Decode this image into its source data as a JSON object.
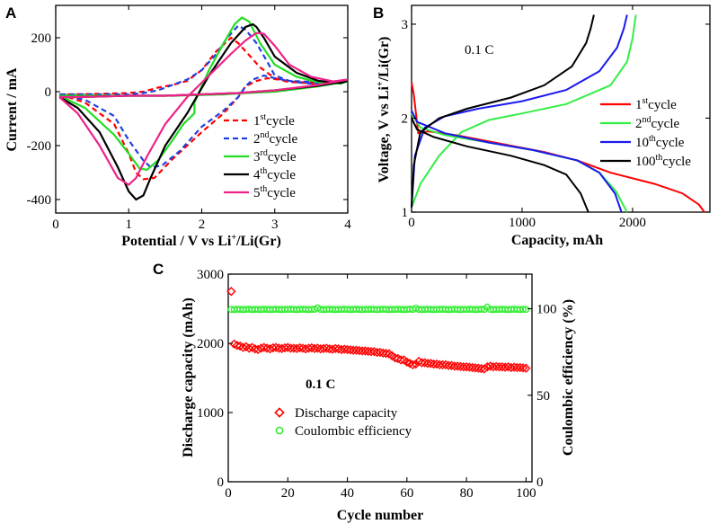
{
  "chart_data": [
    {
      "panel": "A",
      "type": "line",
      "xlabel": "Potential / V vs Li⁺/Li(Gr)",
      "ylabel": "Current / mA",
      "xlim": [
        0,
        4
      ],
      "ylim": [
        -450,
        320
      ],
      "xticks": [
        0,
        1,
        2,
        3,
        4
      ],
      "yticks": [
        -400,
        -200,
        0,
        200
      ],
      "legend_position": "bottom-right",
      "series": [
        {
          "name": "1st cycle",
          "base": "1",
          "sup": "st",
          "rest": "cycle",
          "color": "#ff0000",
          "dash": "dashed",
          "x": [
            0.05,
            0.4,
            0.8,
            1.0,
            1.1,
            1.2,
            1.35,
            1.6,
            2.0,
            2.3,
            2.5,
            2.6,
            2.75,
            2.9,
            3.05,
            3.3,
            3.7,
            4.0,
            3.6,
            3.2,
            3.0,
            2.8,
            2.6,
            2.5,
            2.4,
            2.2,
            2.0,
            1.8,
            1.6,
            1.4,
            1.2,
            1.0,
            0.6,
            0.2,
            0.05
          ],
          "y": [
            -10,
            -40,
            -120,
            -230,
            -300,
            -325,
            -320,
            -250,
            -150,
            -80,
            -20,
            20,
            40,
            50,
            45,
            35,
            25,
            40,
            35,
            35,
            50,
            90,
            150,
            180,
            200,
            150,
            80,
            40,
            25,
            15,
            0,
            -5,
            -8,
            -10,
            -10
          ]
        },
        {
          "name": "2nd cycle",
          "base": "2",
          "sup": "nd",
          "rest": "cycle",
          "color": "#2040e0",
          "dash": "dashed",
          "x": [
            0.05,
            0.4,
            0.8,
            1.0,
            1.2,
            1.3,
            1.45,
            1.7,
            2.0,
            2.3,
            2.5,
            2.6,
            2.7,
            2.85,
            3.0,
            3.3,
            3.7,
            4.0,
            3.6,
            3.2,
            3.0,
            2.9,
            2.75,
            2.6,
            2.5,
            2.35,
            2.2,
            2.0,
            1.8,
            1.6,
            1.4,
            1.2,
            1.0,
            0.6,
            0.2,
            0.05
          ],
          "y": [
            -10,
            -30,
            -90,
            -180,
            -255,
            -280,
            -275,
            -220,
            -130,
            -70,
            -20,
            20,
            45,
            60,
            50,
            35,
            25,
            40,
            35,
            40,
            60,
            110,
            180,
            230,
            245,
            200,
            140,
            80,
            45,
            25,
            5,
            -5,
            -10,
            -10,
            -10,
            -10
          ]
        },
        {
          "name": "3rd cycle",
          "base": "3",
          "sup": "rd",
          "rest": "cycle",
          "color": "#22dd22",
          "dash": "solid",
          "x": [
            0.05,
            0.4,
            0.8,
            1.0,
            1.15,
            1.25,
            1.4,
            1.6,
            1.75,
            1.9,
            1.9,
            2.1,
            2.3,
            2.45,
            2.55,
            2.65,
            2.8,
            3.0,
            3.3,
            3.6,
            3.9,
            4.0,
            3.6,
            3.3,
            3.0,
            2.6,
            2.3,
            2.0,
            1.6,
            1.2,
            0.8,
            0.3,
            0.05
          ],
          "y": [
            -15,
            -60,
            -160,
            -230,
            -285,
            -290,
            -255,
            -180,
            -120,
            -80,
            -40,
            80,
            180,
            250,
            275,
            260,
            180,
            100,
            55,
            35,
            30,
            38,
            20,
            10,
            0,
            -5,
            -10,
            -12,
            -15,
            -15,
            -15,
            -15,
            -15
          ]
        },
        {
          "name": "4th cycle",
          "base": "4",
          "sup": "th",
          "rest": "cycle",
          "color": "#000000",
          "dash": "solid",
          "x": [
            0.05,
            0.3,
            0.6,
            0.85,
            1.0,
            1.1,
            1.2,
            1.3,
            1.5,
            1.8,
            2.1,
            2.4,
            2.6,
            2.7,
            2.75,
            2.85,
            3.0,
            3.3,
            3.6,
            3.9,
            4.0,
            3.6,
            3.0,
            2.5,
            2.0,
            1.5,
            1.0,
            0.6,
            0.3,
            0.05
          ],
          "y": [
            -20,
            -60,
            -150,
            -280,
            -370,
            -400,
            -385,
            -320,
            -200,
            -80,
            60,
            180,
            240,
            250,
            240,
            200,
            130,
            70,
            40,
            32,
            40,
            22,
            5,
            -5,
            -10,
            -15,
            -15,
            -18,
            -20,
            -20
          ]
        },
        {
          "name": "5th cycle",
          "base": "5",
          "sup": "th",
          "rest": "cycle",
          "color": "#ee2288",
          "dash": "solid",
          "x": [
            0.05,
            0.3,
            0.6,
            0.85,
            1.0,
            1.1,
            1.25,
            1.5,
            1.8,
            2.1,
            2.4,
            2.6,
            2.75,
            2.85,
            3.0,
            3.2,
            3.5,
            3.8,
            4.0,
            3.6,
            3.0,
            2.5,
            2.0,
            1.5,
            1.0,
            0.6,
            0.3,
            0.05
          ],
          "y": [
            -20,
            -80,
            -200,
            -320,
            -345,
            -320,
            -240,
            -120,
            -20,
            60,
            140,
            190,
            218,
            215,
            170,
            100,
            55,
            38,
            45,
            25,
            5,
            -5,
            -10,
            -15,
            -15,
            -18,
            -20,
            -20
          ]
        }
      ]
    },
    {
      "panel": "B",
      "type": "line",
      "xlabel": "Capacity, mAh",
      "ylabel": "Voltage,  V vs Li⁺/Li(Gr)",
      "xlim": [
        0,
        2700
      ],
      "ylim": [
        1,
        3.2
      ],
      "xticks": [
        0,
        1000,
        2000
      ],
      "yticks": [
        1,
        2,
        3
      ],
      "annotation": "0.1 C",
      "legend_position": "right",
      "series": [
        {
          "name": "1st cycle",
          "base": "1",
          "sup": "st",
          "rest": "cycle",
          "color": "#ff0000",
          "discharge": {
            "x": [
              0,
              20,
              60,
              150,
              400,
              800,
              1200,
              1500,
              1800,
              2200,
              2450,
              2600,
              2650
            ],
            "y": [
              2.38,
              2.25,
              1.84,
              1.86,
              1.82,
              1.73,
              1.64,
              1.55,
              1.42,
              1.3,
              1.2,
              1.08,
              1.0
            ]
          },
          "charge": null
        },
        {
          "name": "2nd cycle",
          "base": "2",
          "sup": "nd",
          "rest": "cycle",
          "color": "#33ee44",
          "discharge": {
            "x": [
              0,
              80,
              300,
              700,
              1100,
              1500,
              1700,
              1850,
              1950
            ],
            "y": [
              2.05,
              1.9,
              1.82,
              1.74,
              1.66,
              1.55,
              1.42,
              1.22,
              1.0
            ]
          },
          "charge": {
            "x": [
              0,
              80,
              250,
              450,
              700,
              1000,
              1400,
              1800,
              1950,
              2000,
              2030
            ],
            "y": [
              1.05,
              1.3,
              1.6,
              1.85,
              1.98,
              2.05,
              2.15,
              2.35,
              2.6,
              2.85,
              3.1
            ]
          }
        },
        {
          "name": "10th cycle",
          "base": "10",
          "sup": "th",
          "rest": "cycle",
          "color": "#1a1aee",
          "discharge": {
            "x": [
              0,
              50,
              300,
              700,
              1100,
              1500,
              1700,
              1840,
              1900
            ],
            "y": [
              2.08,
              1.96,
              1.84,
              1.74,
              1.66,
              1.55,
              1.42,
              1.2,
              1.0
            ]
          },
          "charge": {
            "x": [
              0,
              30,
              120,
              300,
              600,
              1000,
              1400,
              1700,
              1860,
              1920,
              1950
            ],
            "y": [
              1.05,
              1.6,
              1.9,
              2.02,
              2.1,
              2.18,
              2.3,
              2.5,
              2.75,
              2.95,
              3.1
            ]
          }
        },
        {
          "name": "100th cycle",
          "base": "100",
          "sup": "th",
          "rest": "cycle",
          "color": "#000000",
          "discharge": {
            "x": [
              0,
              50,
              200,
              500,
              900,
              1200,
              1400,
              1530,
              1600
            ],
            "y": [
              2.0,
              1.88,
              1.8,
              1.7,
              1.6,
              1.5,
              1.4,
              1.2,
              1.0
            ]
          },
          "charge": {
            "x": [
              0,
              20,
              80,
              250,
              500,
              900,
              1200,
              1450,
              1580,
              1620,
              1650
            ],
            "y": [
              1.05,
              1.5,
              1.85,
              2.0,
              2.1,
              2.22,
              2.35,
              2.55,
              2.8,
              2.95,
              3.1
            ]
          }
        }
      ]
    },
    {
      "panel": "C",
      "type": "scatter",
      "xlabel": "Cycle number",
      "ylabel": "Discharge capacity (mAh)",
      "y2label": "Coulombic efficiency (%)",
      "xlim": [
        0,
        102
      ],
      "ylim": [
        0,
        3000
      ],
      "y2lim": [
        0,
        120
      ],
      "xticks": [
        0,
        20,
        40,
        60,
        80,
        100
      ],
      "yticks": [
        0,
        1000,
        2000,
        3000
      ],
      "y2ticks": [
        0,
        50,
        100
      ],
      "annotation": "0.1 C",
      "legend_position": "lower-left",
      "series": [
        {
          "name": "Discharge capacity",
          "marker": "diamond",
          "color": "#ff0000",
          "axis": "left",
          "x": [
            1,
            2,
            3,
            4,
            5,
            6,
            7,
            8,
            9,
            10,
            11,
            12,
            13,
            14,
            15,
            16,
            17,
            18,
            19,
            20,
            21,
            22,
            23,
            24,
            25,
            26,
            27,
            28,
            29,
            30,
            31,
            32,
            33,
            34,
            35,
            36,
            37,
            38,
            39,
            40,
            41,
            42,
            43,
            44,
            45,
            46,
            47,
            48,
            49,
            50,
            51,
            52,
            53,
            54,
            55,
            56,
            57,
            58,
            59,
            60,
            61,
            62,
            63,
            64,
            65,
            66,
            67,
            68,
            69,
            70,
            71,
            72,
            73,
            74,
            75,
            76,
            77,
            78,
            79,
            80,
            81,
            82,
            83,
            84,
            85,
            86,
            87,
            88,
            89,
            90,
            91,
            92,
            93,
            94,
            95,
            96,
            97,
            98,
            99,
            100
          ],
          "y": [
            2750,
            1990,
            1970,
            1960,
            1940,
            1950,
            1930,
            1940,
            1920,
            1910,
            1930,
            1940,
            1930,
            1920,
            1935,
            1940,
            1930,
            1925,
            1935,
            1940,
            1930,
            1930,
            1925,
            1935,
            1930,
            1920,
            1930,
            1935,
            1925,
            1930,
            1920,
            1925,
            1930,
            1920,
            1915,
            1925,
            1920,
            1910,
            1915,
            1910,
            1905,
            1900,
            1900,
            1895,
            1890,
            1890,
            1885,
            1880,
            1880,
            1870,
            1870,
            1860,
            1855,
            1850,
            1820,
            1790,
            1780,
            1760,
            1760,
            1730,
            1710,
            1690,
            1700,
            1740,
            1720,
            1720,
            1710,
            1710,
            1700,
            1700,
            1690,
            1690,
            1690,
            1680,
            1680,
            1670,
            1670,
            1665,
            1660,
            1660,
            1655,
            1650,
            1645,
            1640,
            1635,
            1630,
            1660,
            1670,
            1660,
            1665,
            1660,
            1660,
            1655,
            1660,
            1650,
            1655,
            1650,
            1650,
            1645,
            1640
          ]
        },
        {
          "name": "Coulombic efficiency",
          "marker": "circle",
          "color": "#33ee33",
          "axis": "right",
          "x": [
            1,
            2,
            3,
            4,
            5,
            6,
            7,
            8,
            9,
            10,
            11,
            12,
            13,
            14,
            15,
            16,
            17,
            18,
            19,
            20,
            21,
            22,
            23,
            24,
            25,
            26,
            27,
            28,
            29,
            30,
            31,
            32,
            33,
            34,
            35,
            36,
            37,
            38,
            39,
            40,
            41,
            42,
            43,
            44,
            45,
            46,
            47,
            48,
            49,
            50,
            51,
            52,
            53,
            54,
            55,
            56,
            57,
            58,
            59,
            60,
            61,
            62,
            63,
            64,
            65,
            66,
            67,
            68,
            69,
            70,
            71,
            72,
            73,
            74,
            75,
            76,
            77,
            78,
            79,
            80,
            81,
            82,
            83,
            84,
            85,
            86,
            87,
            88,
            89,
            90,
            91,
            92,
            93,
            94,
            95,
            96,
            97,
            98,
            99,
            100
          ],
          "y": [
            99.6,
            99.5,
            99.7,
            99.6,
            99.5,
            99.6,
            99.7,
            99.5,
            99.6,
            99.6,
            99.5,
            99.7,
            99.6,
            99.5,
            99.6,
            99.7,
            99.6,
            99.5,
            99.6,
            99.6,
            99.7,
            99.6,
            99.5,
            99.6,
            99.7,
            99.6,
            99.5,
            99.6,
            99.7,
            100.5,
            99.6,
            99.5,
            99.6,
            99.7,
            99.6,
            99.5,
            99.6,
            99.6,
            99.7,
            99.6,
            99.5,
            99.6,
            99.7,
            99.6,
            99.5,
            99.6,
            99.6,
            99.7,
            99.6,
            99.5,
            99.6,
            99.7,
            99.6,
            99.5,
            99.6,
            99.6,
            99.7,
            99.6,
            99.5,
            99.6,
            99.7,
            99.6,
            100.3,
            99.6,
            99.5,
            99.6,
            99.7,
            99.6,
            99.5,
            99.6,
            99.6,
            99.7,
            99.6,
            99.5,
            99.6,
            99.7,
            99.6,
            99.5,
            99.6,
            99.6,
            99.7,
            99.6,
            99.5,
            99.6,
            99.7,
            99.6,
            101.0,
            99.6,
            99.5,
            99.6,
            99.6,
            99.7,
            99.6,
            99.5,
            99.6,
            99.7,
            99.6,
            99.5,
            99.6,
            99.6
          ]
        }
      ]
    }
  ],
  "panels": {
    "a": {
      "label": "A"
    },
    "b": {
      "label": "B"
    },
    "c": {
      "label": "C"
    }
  }
}
